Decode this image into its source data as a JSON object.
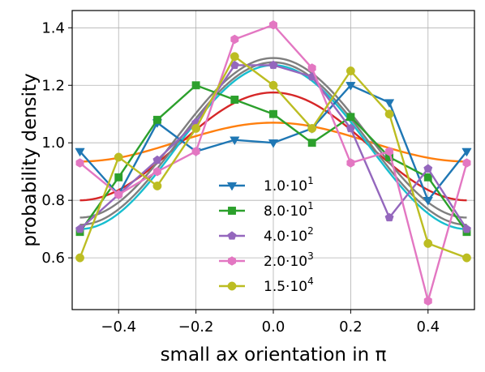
{
  "chart_data": {
    "type": "line",
    "xlabel": "small ax orientation  in π",
    "ylabel": "probability density",
    "xlim": [
      -0.52,
      0.52
    ],
    "ylim": [
      0.42,
      1.46
    ],
    "xticks": [
      -0.4,
      -0.2,
      0.0,
      0.2,
      0.4
    ],
    "xtick_labels": [
      "−0.4",
      "−0.2",
      "0.0",
      "0.2",
      "0.4"
    ],
    "yticks": [
      0.6,
      0.8,
      1.0,
      1.2,
      1.4
    ],
    "ytick_labels": [
      "0.6",
      "0.8",
      "1.0",
      "1.2",
      "1.4"
    ],
    "grid": true,
    "legend_position": "lower-center",
    "x": [
      -0.5,
      -0.4,
      -0.3,
      -0.2,
      -0.1,
      0.0,
      0.1,
      0.2,
      0.3,
      0.4,
      0.5
    ],
    "series": [
      {
        "name": "1.0·10^1",
        "label_mantissa": "1.0",
        "label_exp": "1",
        "color": "#1f77b4",
        "marker": "triangle-down",
        "values": [
          0.97,
          0.82,
          1.07,
          0.97,
          1.01,
          1.0,
          1.05,
          1.2,
          1.14,
          0.8,
          0.97
        ]
      },
      {
        "name": "8.0·10^1",
        "label_mantissa": "8.0",
        "label_exp": "1",
        "color": "#2ca02c",
        "marker": "square",
        "values": [
          0.69,
          0.88,
          1.08,
          1.2,
          1.15,
          1.1,
          1.0,
          1.09,
          0.95,
          0.88,
          0.69
        ]
      },
      {
        "name": "4.0·10^2",
        "label_mantissa": "4.0",
        "label_exp": "2",
        "color": "#9467bd",
        "marker": "pentagon",
        "values": [
          0.7,
          0.82,
          0.94,
          1.07,
          1.27,
          1.27,
          1.23,
          1.05,
          0.74,
          0.91,
          0.7
        ]
      },
      {
        "name": "2.0·10^3",
        "label_mantissa": "2.0",
        "label_exp": "3",
        "color": "#e377c2",
        "marker": "hexagon",
        "values": [
          0.93,
          0.82,
          0.9,
          0.97,
          1.36,
          1.41,
          1.26,
          0.93,
          0.97,
          0.45,
          0.93
        ]
      },
      {
        "name": "1.5·10^4",
        "label_mantissa": "1.5",
        "label_exp": "4",
        "color": "#bcbd22",
        "marker": "circle",
        "values": [
          0.6,
          0.95,
          0.85,
          1.05,
          1.3,
          1.2,
          1.05,
          1.25,
          1.1,
          0.65,
          0.6
        ]
      }
    ],
    "fit_curves": [
      {
        "color": "#ff7f0e",
        "min": 0.935,
        "max": 1.07
      },
      {
        "color": "#d62728",
        "min": 0.8,
        "max": 1.175
      },
      {
        "color": "#7f7f7f",
        "min": 0.715,
        "max": 1.28
      },
      {
        "color": "#7f7f7f",
        "min": 0.74,
        "max": 1.295
      },
      {
        "color": "#17becf",
        "min": 0.7,
        "max": 1.27
      }
    ]
  }
}
